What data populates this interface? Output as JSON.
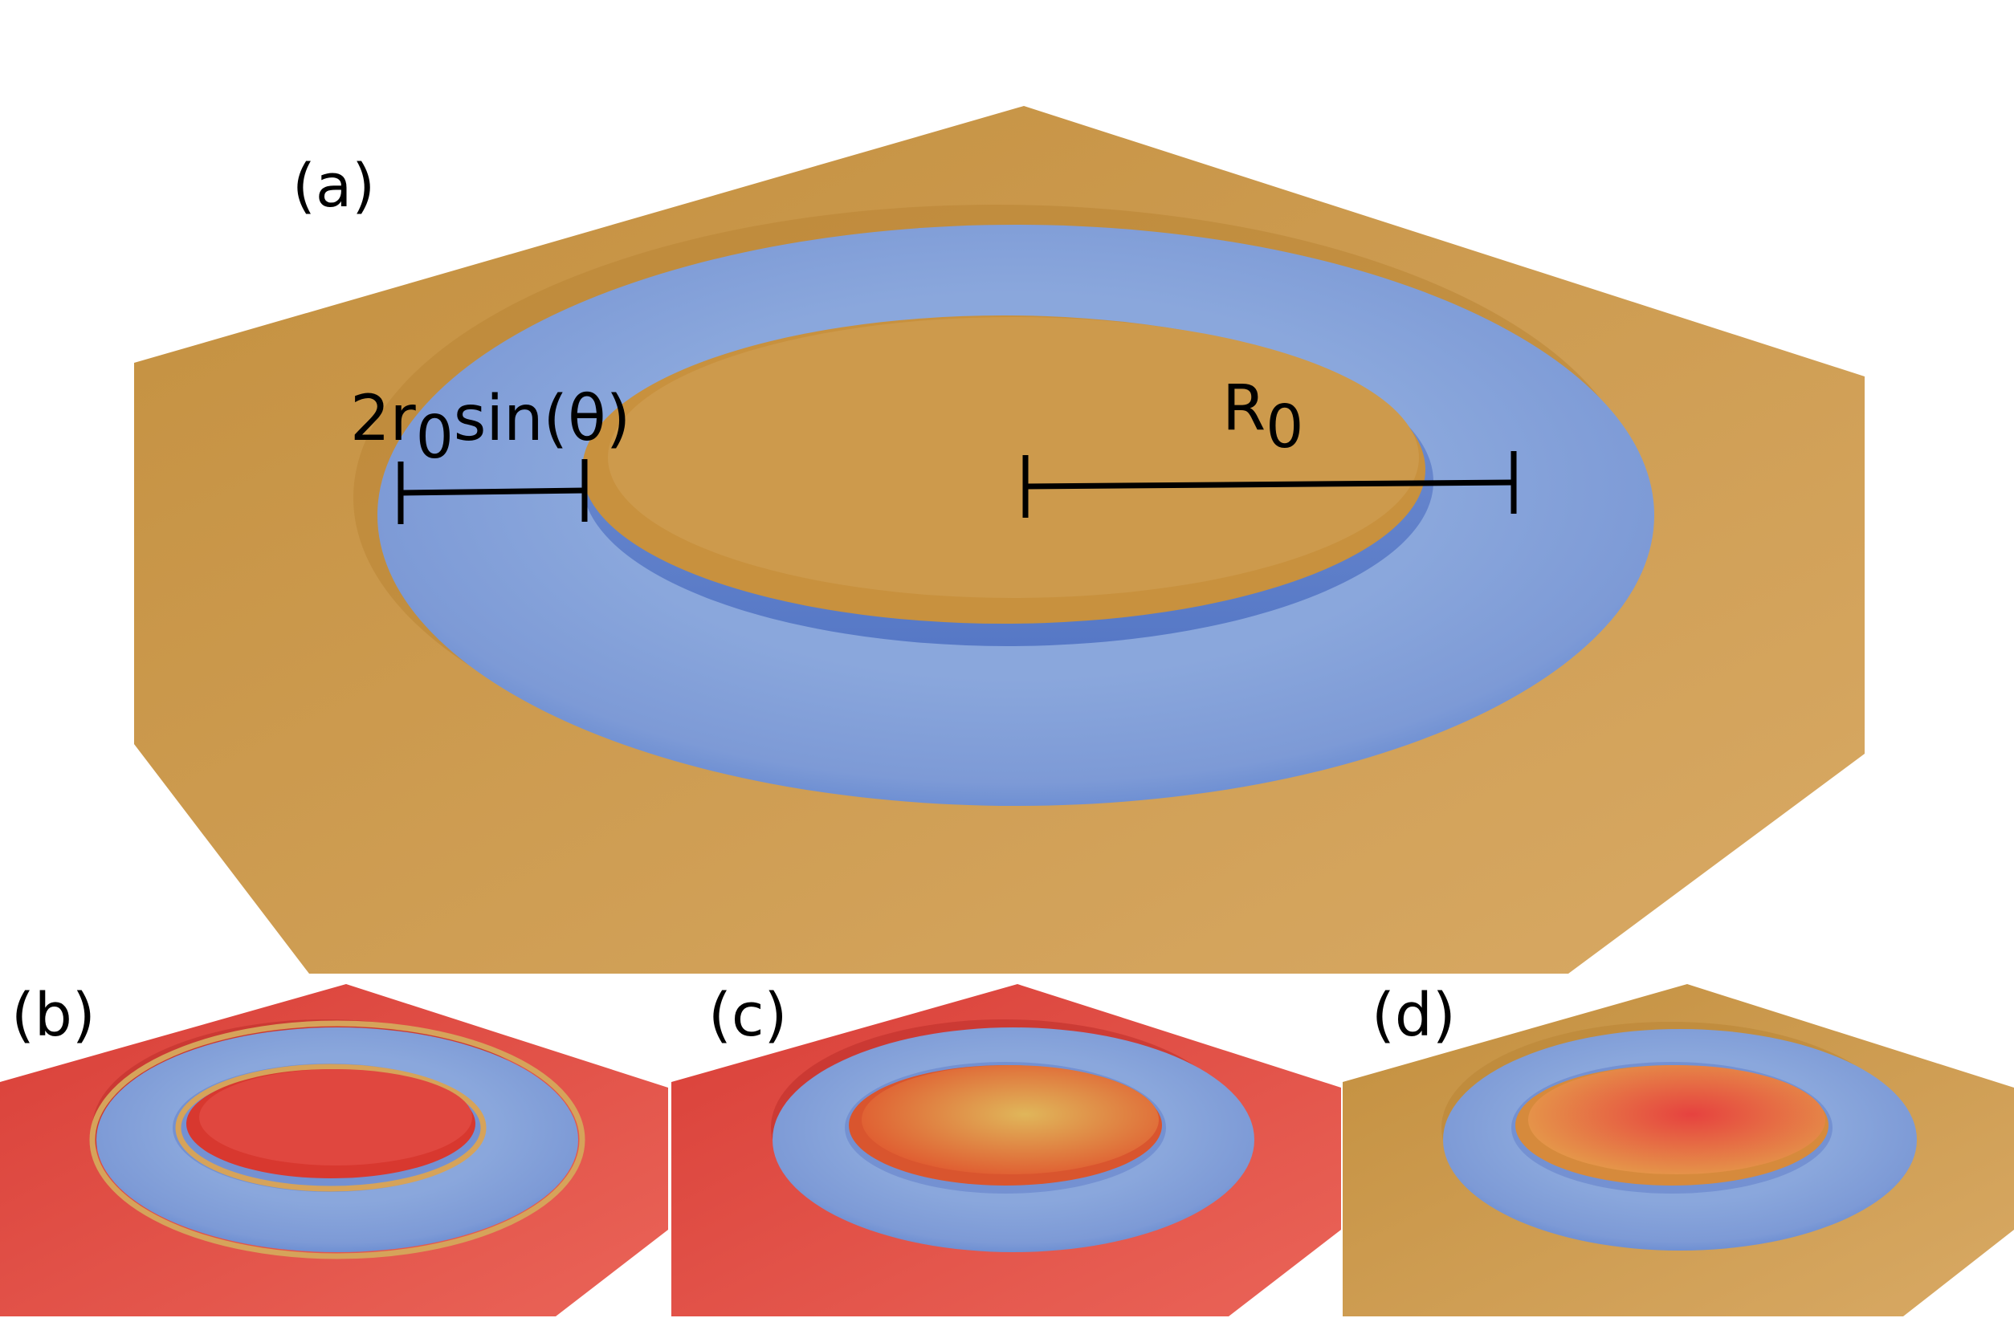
{
  "panels": {
    "a": {
      "label": "(a)"
    },
    "b": {
      "label": "(b)"
    },
    "c": {
      "label": "(c)"
    },
    "d": {
      "label": "(d)"
    }
  },
  "dimensions": {
    "tube": {
      "prefix": "2r",
      "subscript": "0",
      "suffix": "sin(θ)"
    },
    "radius": {
      "main": "R",
      "subscript": "0"
    }
  },
  "colors": {
    "substrate_gold": "#cf9b4e",
    "substrate_red": "#e0473f",
    "torus_blue": "#7f9fd8",
    "torus_blue_dark": "#5f7fc8",
    "center_orange": "#e3763a",
    "center_yellow": "#e0b453"
  }
}
